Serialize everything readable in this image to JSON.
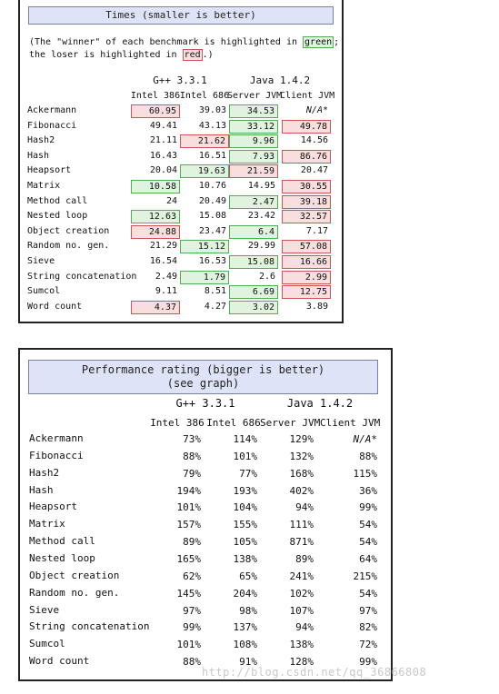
{
  "times": {
    "title": "Times (smaller is better)",
    "note_part1": "(The \"winner\" of each benchmark is highlighted in ",
    "note_green": "green",
    "note_part2": ";",
    "note_part3": "the loser is highlighted in ",
    "note_red": "red",
    "note_part4": ".)",
    "group_gpp": "G++ 3.3.1",
    "group_java": "Java 1.4.2",
    "columns": [
      "Intel 386",
      "Intel 686",
      "Server JVM",
      "Client JVM"
    ],
    "rows": [
      {
        "label": "Ackermann",
        "values": [
          "60.95",
          "39.03",
          "34.53",
          "N/A*"
        ],
        "marks": [
          "lose",
          "",
          "win",
          ""
        ]
      },
      {
        "label": "Fibonacci",
        "values": [
          "49.41",
          "43.13",
          "33.12",
          "49.78"
        ],
        "marks": [
          "",
          "",
          "win",
          "lose"
        ]
      },
      {
        "label": "Hash2",
        "values": [
          "21.11",
          "21.62",
          "9.96",
          "14.56"
        ],
        "marks": [
          "",
          "lose",
          "win",
          ""
        ]
      },
      {
        "label": "Hash",
        "values": [
          "16.43",
          "16.51",
          "7.93",
          "86.76"
        ],
        "marks": [
          "",
          "",
          "win",
          "lose"
        ]
      },
      {
        "label": "Heapsort",
        "values": [
          "20.04",
          "19.63",
          "21.59",
          "20.47"
        ],
        "marks": [
          "",
          "win",
          "lose",
          ""
        ]
      },
      {
        "label": "Matrix",
        "values": [
          "10.58",
          "10.76",
          "14.95",
          "30.55"
        ],
        "marks": [
          "win",
          "",
          "",
          "lose"
        ]
      },
      {
        "label": "Method call",
        "values": [
          "24",
          "20.49",
          "2.47",
          "39.18"
        ],
        "marks": [
          "",
          "",
          "win",
          "lose"
        ]
      },
      {
        "label": "Nested loop",
        "values": [
          "12.63",
          "15.08",
          "23.42",
          "32.57"
        ],
        "marks": [
          "win",
          "",
          "",
          "lose"
        ]
      },
      {
        "label": "Object creation",
        "values": [
          "24.88",
          "23.47",
          "6.4",
          "7.17"
        ],
        "marks": [
          "lose",
          "",
          "win",
          ""
        ]
      },
      {
        "label": "Random no. gen.",
        "values": [
          "21.29",
          "15.12",
          "29.99",
          "57.08"
        ],
        "marks": [
          "",
          "win",
          "",
          "lose"
        ]
      },
      {
        "label": "Sieve",
        "values": [
          "16.54",
          "16.53",
          "15.08",
          "16.66"
        ],
        "marks": [
          "",
          "",
          "win",
          "lose"
        ]
      },
      {
        "label": "String concatenation",
        "values": [
          "2.49",
          "1.79",
          "2.6",
          "2.99"
        ],
        "marks": [
          "",
          "win",
          "",
          "lose"
        ]
      },
      {
        "label": "Sumcol",
        "values": [
          "9.11",
          "8.51",
          "6.69",
          "12.75"
        ],
        "marks": [
          "",
          "",
          "win",
          "lose"
        ]
      },
      {
        "label": "Word count",
        "values": [
          "4.37",
          "4.27",
          "3.02",
          "3.89"
        ],
        "marks": [
          "lose",
          "",
          "win",
          ""
        ]
      }
    ]
  },
  "rating": {
    "title_line1": "Performance rating (bigger is better)",
    "title_line2": "(see graph)",
    "group_gpp": "G++ 3.3.1",
    "group_java": "Java 1.4.2",
    "columns": [
      "Intel 386",
      "Intel 686",
      "Server JVM",
      "Client JVM"
    ],
    "rows": [
      {
        "label": "Ackermann",
        "values": [
          "73%",
          "114%",
          "129%",
          "N/A*"
        ]
      },
      {
        "label": "Fibonacci",
        "values": [
          "88%",
          "101%",
          "132%",
          "88%"
        ]
      },
      {
        "label": "Hash2",
        "values": [
          "79%",
          "77%",
          "168%",
          "115%"
        ]
      },
      {
        "label": "Hash",
        "values": [
          "194%",
          "193%",
          "402%",
          "36%"
        ]
      },
      {
        "label": "Heapsort",
        "values": [
          "101%",
          "104%",
          "94%",
          "99%"
        ]
      },
      {
        "label": "Matrix",
        "values": [
          "157%",
          "155%",
          "111%",
          "54%"
        ]
      },
      {
        "label": "Method call",
        "values": [
          "89%",
          "105%",
          "871%",
          "54%"
        ]
      },
      {
        "label": "Nested loop",
        "values": [
          "165%",
          "138%",
          "89%",
          "64%"
        ]
      },
      {
        "label": "Object creation",
        "values": [
          "62%",
          "65%",
          "241%",
          "215%"
        ]
      },
      {
        "label": "Random no. gen.",
        "values": [
          "145%",
          "204%",
          "102%",
          "54%"
        ]
      },
      {
        "label": "Sieve",
        "values": [
          "97%",
          "98%",
          "107%",
          "97%"
        ]
      },
      {
        "label": "String concatenation",
        "values": [
          "99%",
          "137%",
          "94%",
          "82%"
        ]
      },
      {
        "label": "Sumcol",
        "values": [
          "101%",
          "108%",
          "138%",
          "72%"
        ]
      },
      {
        "label": "Word count",
        "values": [
          "88%",
          "91%",
          "128%",
          "99%"
        ]
      }
    ]
  },
  "watermark": "http://blog.csdn.net/qq_36866808"
}
